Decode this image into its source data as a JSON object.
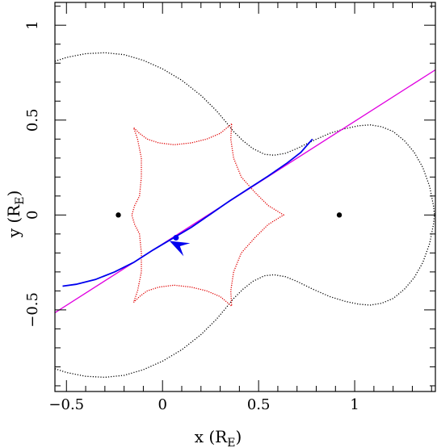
{
  "chart_data": {
    "type": "line",
    "title": "",
    "xlabel": "x (R",
    "xlabel_sub": "E",
    "xlabel_close": ")",
    "ylabel": "y (R",
    "ylabel_sub": "E",
    "ylabel_close": ")",
    "xlim": [
      -0.56,
      1.42
    ],
    "ylim": [
      -0.93,
      1.12
    ],
    "x_ticks": [
      {
        "value": -0.5,
        "label": "−0.5"
      },
      {
        "value": 0,
        "label": "0"
      },
      {
        "value": 0.5,
        "label": "0.5"
      },
      {
        "value": 1,
        "label": "1"
      }
    ],
    "y_ticks": [
      {
        "value": -0.5,
        "label": "−0.5"
      },
      {
        "value": 0,
        "label": "0"
      },
      {
        "value": 0.5,
        "label": "0.5"
      },
      {
        "value": 1,
        "label": "1"
      }
    ],
    "x_minor_step": 0.1,
    "y_minor_step": 0.1,
    "grid": false,
    "lenses": [
      {
        "x": -0.23,
        "y": 0.0
      },
      {
        "x": 0.92,
        "y": 0.0
      }
    ],
    "source_point": {
      "x": 0.07,
      "y": -0.12
    },
    "colors": {
      "critical_curve": "#000000",
      "caustic": "#e00000",
      "source_trajectory": "#0000ee",
      "straight_line": "#e000e0",
      "points": "#000000",
      "arrow": "#0000ee"
    },
    "critical_curves": {
      "upper_outer": [
        [
          -0.56,
          0.81
        ],
        [
          -0.5,
          0.83
        ],
        [
          -0.4,
          0.85
        ],
        [
          -0.3,
          0.855
        ],
        [
          -0.2,
          0.845
        ],
        [
          -0.1,
          0.815
        ],
        [
          0.0,
          0.77
        ],
        [
          0.1,
          0.71
        ],
        [
          0.2,
          0.63
        ],
        [
          0.28,
          0.55
        ],
        [
          0.33,
          0.49
        ],
        [
          0.37,
          0.44
        ],
        [
          0.42,
          0.39
        ],
        [
          0.47,
          0.35
        ],
        [
          0.53,
          0.32
        ],
        [
          0.58,
          0.315
        ],
        [
          0.64,
          0.325
        ],
        [
          0.7,
          0.35
        ],
        [
          0.78,
          0.39
        ],
        [
          0.87,
          0.43
        ],
        [
          0.95,
          0.455
        ],
        [
          1.02,
          0.47
        ],
        [
          1.08,
          0.475
        ],
        [
          1.14,
          0.465
        ],
        [
          1.2,
          0.44
        ],
        [
          1.26,
          0.39
        ],
        [
          1.31,
          0.33
        ],
        [
          1.355,
          0.25
        ],
        [
          1.39,
          0.15
        ],
        [
          1.41,
          0.05
        ],
        [
          1.415,
          0.0
        ]
      ],
      "lower_outer": [
        [
          -0.56,
          -0.81
        ],
        [
          -0.5,
          -0.83
        ],
        [
          -0.4,
          -0.85
        ],
        [
          -0.3,
          -0.855
        ],
        [
          -0.2,
          -0.845
        ],
        [
          -0.1,
          -0.815
        ],
        [
          0.0,
          -0.77
        ],
        [
          0.1,
          -0.71
        ],
        [
          0.2,
          -0.63
        ],
        [
          0.28,
          -0.55
        ],
        [
          0.33,
          -0.49
        ],
        [
          0.37,
          -0.44
        ],
        [
          0.42,
          -0.39
        ],
        [
          0.47,
          -0.35
        ],
        [
          0.53,
          -0.32
        ],
        [
          0.58,
          -0.315
        ],
        [
          0.64,
          -0.325
        ],
        [
          0.7,
          -0.35
        ],
        [
          0.78,
          -0.39
        ],
        [
          0.87,
          -0.43
        ],
        [
          0.95,
          -0.455
        ],
        [
          1.02,
          -0.47
        ],
        [
          1.08,
          -0.475
        ],
        [
          1.14,
          -0.465
        ],
        [
          1.2,
          -0.44
        ],
        [
          1.26,
          -0.39
        ],
        [
          1.31,
          -0.33
        ],
        [
          1.355,
          -0.25
        ],
        [
          1.39,
          -0.15
        ],
        [
          1.41,
          -0.05
        ],
        [
          1.415,
          0.0
        ]
      ]
    },
    "caustic": [
      [
        0.36,
        0.48
      ],
      [
        0.3,
        0.43
      ],
      [
        0.23,
        0.4
      ],
      [
        0.15,
        0.38
      ],
      [
        0.06,
        0.37
      ],
      [
        -0.02,
        0.38
      ],
      [
        -0.08,
        0.4
      ],
      [
        -0.12,
        0.43
      ],
      [
        -0.15,
        0.46
      ],
      [
        -0.13,
        0.4
      ],
      [
        -0.11,
        0.3
      ],
      [
        -0.11,
        0.2
      ],
      [
        -0.12,
        0.1
      ],
      [
        -0.145,
        0.05
      ],
      [
        -0.16,
        0.0
      ],
      [
        -0.145,
        -0.05
      ],
      [
        -0.12,
        -0.1
      ],
      [
        -0.11,
        -0.2
      ],
      [
        -0.11,
        -0.3
      ],
      [
        -0.13,
        -0.4
      ],
      [
        -0.15,
        -0.46
      ],
      [
        -0.12,
        -0.43
      ],
      [
        -0.08,
        -0.4
      ],
      [
        -0.02,
        -0.38
      ],
      [
        0.06,
        -0.37
      ],
      [
        0.15,
        -0.38
      ],
      [
        0.23,
        -0.4
      ],
      [
        0.3,
        -0.43
      ],
      [
        0.36,
        -0.48
      ],
      [
        0.355,
        -0.4
      ],
      [
        0.37,
        -0.3
      ],
      [
        0.41,
        -0.2
      ],
      [
        0.48,
        -0.12
      ],
      [
        0.55,
        -0.05
      ],
      [
        0.63,
        0.0
      ],
      [
        0.55,
        0.05
      ],
      [
        0.48,
        0.12
      ],
      [
        0.41,
        0.2
      ],
      [
        0.37,
        0.3
      ],
      [
        0.355,
        0.4
      ],
      [
        0.36,
        0.48
      ]
    ],
    "source_trajectory": [
      [
        -0.52,
        -0.375
      ],
      [
        -0.45,
        -0.365
      ],
      [
        -0.35,
        -0.34
      ],
      [
        -0.25,
        -0.3
      ],
      [
        -0.15,
        -0.25
      ],
      [
        -0.05,
        -0.185
      ],
      [
        0.05,
        -0.125
      ],
      [
        0.15,
        -0.065
      ],
      [
        0.25,
        0.005
      ],
      [
        0.35,
        0.075
      ],
      [
        0.45,
        0.14
      ],
      [
        0.55,
        0.205
      ],
      [
        0.65,
        0.275
      ],
      [
        0.72,
        0.33
      ],
      [
        0.78,
        0.4
      ]
    ],
    "straight_line": [
      [
        -0.56,
        -0.515
      ],
      [
        1.42,
        0.765
      ]
    ]
  }
}
